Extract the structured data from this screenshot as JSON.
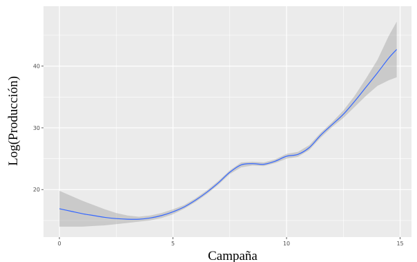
{
  "chart_data": {
    "type": "line",
    "title": "",
    "xlabel": "Campaña",
    "ylabel": "Log(Producción)",
    "xlim": [
      -0.7,
      15.5
    ],
    "ylim": [
      12.3,
      49.7
    ],
    "x_ticks": [
      0,
      5,
      10,
      15
    ],
    "y_ticks": [
      20,
      30,
      40
    ],
    "x_tick_labels": [
      "0",
      "5",
      "10",
      "15"
    ],
    "y_tick_labels": [
      "20",
      "30",
      "40"
    ],
    "grid": true,
    "legend": "none",
    "series": [
      {
        "x": [
          0,
          0.5,
          1,
          1.5,
          2,
          2.5,
          3,
          3.5,
          4,
          4.5,
          5,
          5.5,
          6,
          6.5,
          7,
          7.5,
          8,
          8.5,
          9,
          9.5,
          10,
          10.5,
          11,
          11.5,
          12,
          12.5,
          13,
          13.5,
          14,
          14.5,
          14.85
        ],
        "y": [
          16.9,
          16.5,
          16.1,
          15.8,
          15.5,
          15.3,
          15.2,
          15.2,
          15.4,
          15.8,
          16.4,
          17.2,
          18.3,
          19.6,
          21.1,
          22.8,
          24.0,
          24.2,
          24.1,
          24.6,
          25.4,
          25.7,
          26.8,
          28.8,
          30.5,
          32.2,
          34.3,
          36.6,
          38.9,
          41.3,
          42.7
        ],
        "ci_lower": [
          14.0,
          14.0,
          14.0,
          14.1,
          14.2,
          14.4,
          14.6,
          14.8,
          15.0,
          15.4,
          16.0,
          16.9,
          18.0,
          19.3,
          20.8,
          22.5,
          23.6,
          23.9,
          23.8,
          24.3,
          25.0,
          25.3,
          26.4,
          28.4,
          30.1,
          31.6,
          33.4,
          35.2,
          36.8,
          37.7,
          38.2
        ],
        "ci_upper": [
          19.8,
          19.0,
          18.2,
          17.5,
          16.8,
          16.2,
          15.8,
          15.6,
          15.8,
          16.2,
          16.8,
          17.5,
          18.6,
          19.9,
          21.4,
          23.1,
          24.4,
          24.5,
          24.4,
          24.9,
          25.8,
          26.1,
          27.2,
          29.2,
          30.9,
          32.8,
          35.2,
          38.0,
          41.0,
          44.9,
          47.2
        ]
      }
    ],
    "colors": {
      "line": "#3366ff",
      "ribbon": "#999999",
      "panel": "#ebebeb",
      "grid": "#ffffff"
    }
  }
}
